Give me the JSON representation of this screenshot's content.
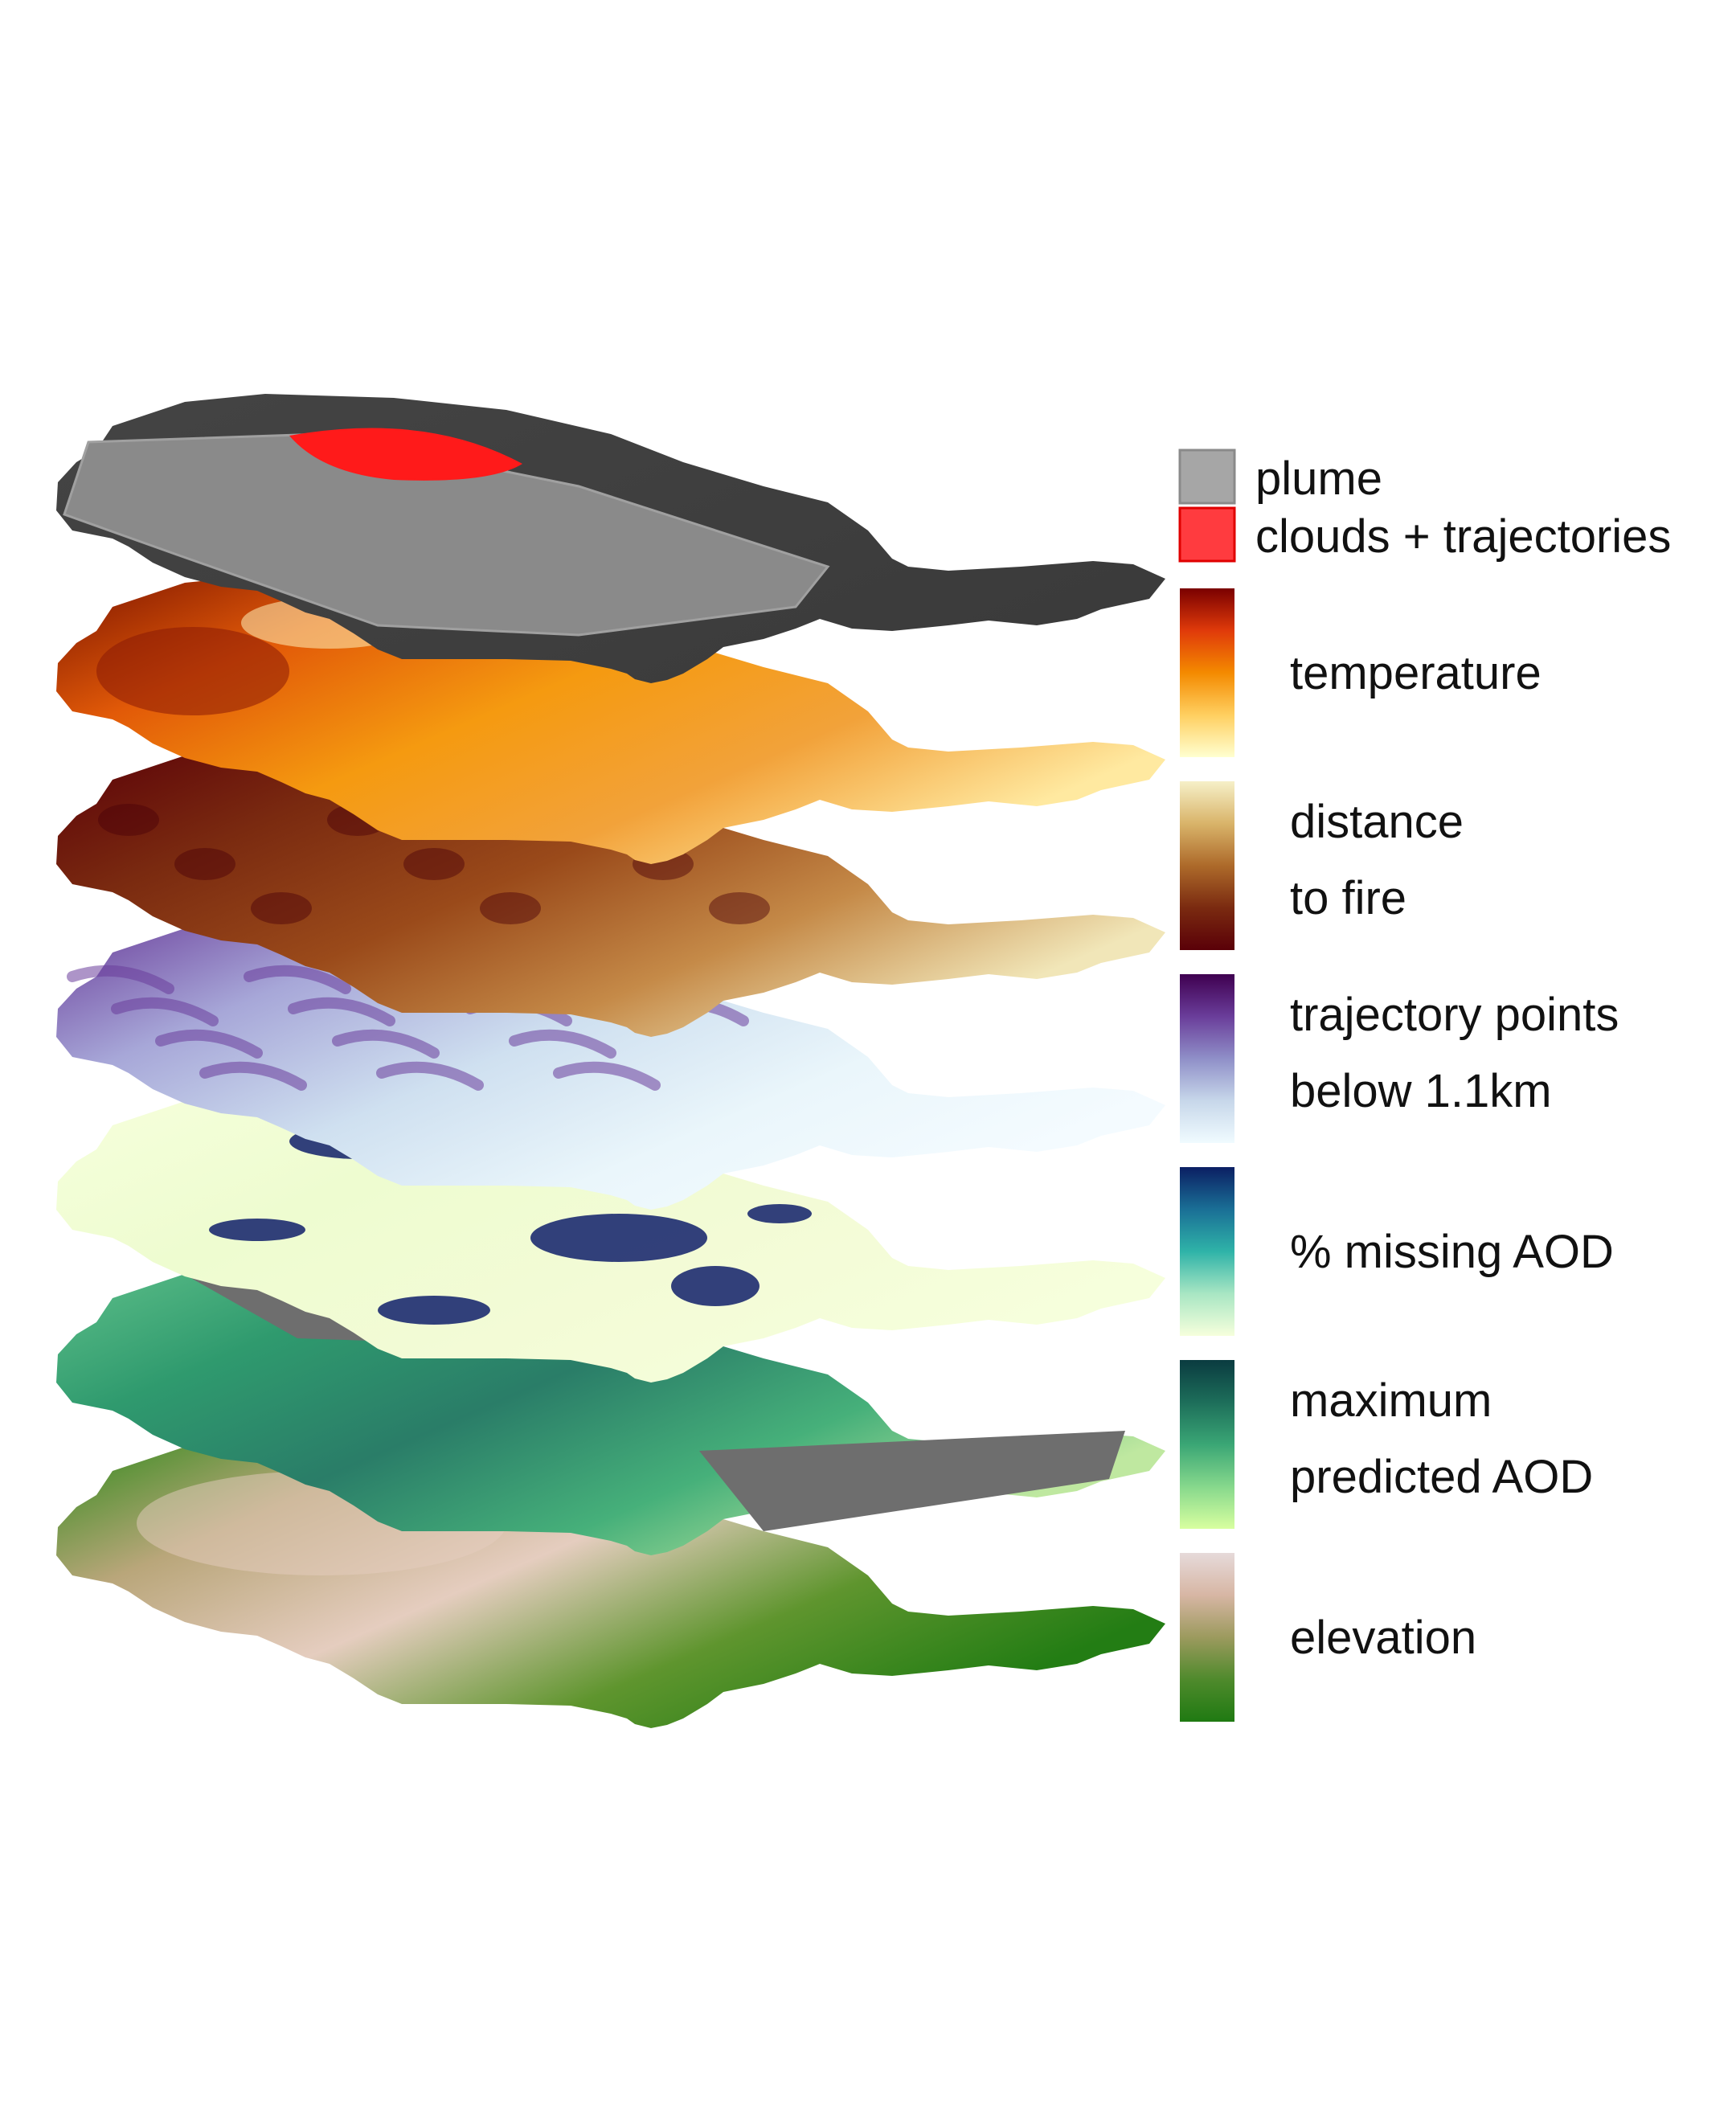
{
  "layers": [
    {
      "id": "plume",
      "name": "plume"
    },
    {
      "id": "temperature",
      "name": "temperature"
    },
    {
      "id": "distance",
      "name": "distance to fire"
    },
    {
      "id": "trajectory",
      "name": "trajectory points below 1.1km"
    },
    {
      "id": "missing",
      "name": "% missing AOD"
    },
    {
      "id": "maxaod",
      "name": "maximum predicted AOD"
    },
    {
      "id": "elevation",
      "name": "elevation"
    }
  ],
  "legend": {
    "categorical": [
      {
        "label": "plume",
        "color": "#a6a6a6",
        "border": "#8a8a8a"
      },
      {
        "label": "clouds + trajectories",
        "color": "#ff3b3f",
        "border": "#e00000"
      }
    ],
    "gradients": [
      {
        "id": "temperature",
        "lines": [
          "temperature"
        ],
        "colors": [
          "#7a0000",
          "#e03a0a",
          "#f48a00",
          "#ffcf60",
          "#ffffd0"
        ]
      },
      {
        "id": "distance",
        "lines": [
          "distance",
          "to fire"
        ],
        "colors": [
          "#f6f0c8",
          "#d9b46a",
          "#ad6a2a",
          "#7a2a10",
          "#5a0008"
        ]
      },
      {
        "id": "trajectory",
        "lines": [
          "trajectory points",
          "below 1.1km"
        ],
        "colors": [
          "#3f0050",
          "#6a3d9a",
          "#8f8fc8",
          "#c7d7ea",
          "#f0fbff"
        ]
      },
      {
        "id": "missing",
        "lines": [
          "% missing AOD"
        ],
        "colors": [
          "#0b1f63",
          "#1a6f96",
          "#2fb3a8",
          "#a8e6c3",
          "#f6ffdc"
        ]
      },
      {
        "id": "maxaod",
        "lines": [
          "maximum",
          "predicted AOD"
        ],
        "colors": [
          "#0a3b40",
          "#1d6e5a",
          "#3aa675",
          "#86d88c",
          "#d8ffa0"
        ]
      },
      {
        "id": "elevation",
        "lines": [
          "elevation"
        ],
        "colors": [
          "#e6dada",
          "#d7b6a4",
          "#9c9a5e",
          "#4f8a2c",
          "#1f7a12"
        ]
      }
    ]
  },
  "colors": {
    "plume_dark": "#3d3d3d",
    "plume_light": "#8a8a8a",
    "clouds": "#ff1a1a",
    "masked_gray": "#6e6e6e"
  }
}
